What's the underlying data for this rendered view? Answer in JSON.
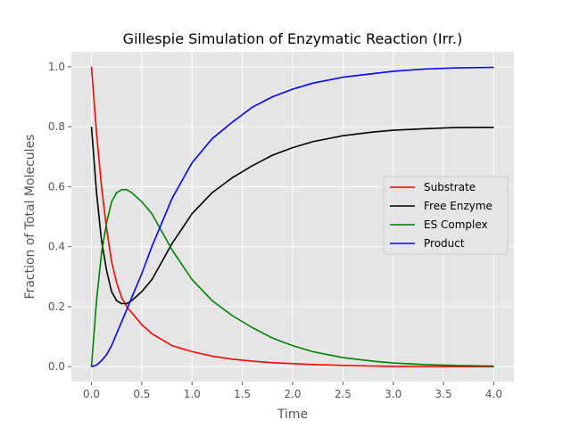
{
  "chart_data": {
    "type": "line",
    "title": "Gillespie Simulation of Enzymatic Reaction (Irr.)",
    "xlabel": "Time",
    "ylabel": "Fraction of Total Molecules",
    "xlim": [
      -0.2,
      4.2
    ],
    "ylim": [
      -0.05,
      1.05
    ],
    "xticks": [
      "0.0",
      "0.5",
      "1.0",
      "1.5",
      "2.0",
      "2.5",
      "3.0",
      "3.5",
      "4.0"
    ],
    "yticks": [
      "0.0",
      "0.2",
      "0.4",
      "0.6",
      "0.8",
      "1.0"
    ],
    "grid": true,
    "legend_position": "right",
    "x": [
      0.0,
      0.05,
      0.1,
      0.15,
      0.2,
      0.25,
      0.3,
      0.35,
      0.4,
      0.5,
      0.6,
      0.7,
      0.8,
      0.9,
      1.0,
      1.2,
      1.4,
      1.6,
      1.8,
      2.0,
      2.2,
      2.5,
      2.8,
      3.0,
      3.3,
      3.6,
      4.0
    ],
    "series": [
      {
        "name": "Substrate",
        "color": "#ff0000",
        "values": [
          1.0,
          0.78,
          0.6,
          0.46,
          0.35,
          0.28,
          0.23,
          0.2,
          0.18,
          0.14,
          0.11,
          0.09,
          0.07,
          0.06,
          0.05,
          0.035,
          0.025,
          0.018,
          0.013,
          0.01,
          0.007,
          0.004,
          0.002,
          0.001,
          0.0005,
          0.0002,
          0.0
        ]
      },
      {
        "name": "Free Enzyme",
        "color": "#000000",
        "values": [
          0.8,
          0.58,
          0.42,
          0.32,
          0.25,
          0.22,
          0.21,
          0.21,
          0.22,
          0.25,
          0.29,
          0.35,
          0.41,
          0.46,
          0.51,
          0.58,
          0.63,
          0.67,
          0.705,
          0.73,
          0.75,
          0.77,
          0.782,
          0.788,
          0.793,
          0.797,
          0.798
        ]
      },
      {
        "name": "ES Complex",
        "color": "#008000",
        "values": [
          0.0,
          0.22,
          0.38,
          0.48,
          0.55,
          0.58,
          0.59,
          0.59,
          0.58,
          0.55,
          0.51,
          0.45,
          0.39,
          0.34,
          0.29,
          0.22,
          0.17,
          0.13,
          0.095,
          0.07,
          0.05,
          0.03,
          0.018,
          0.012,
          0.007,
          0.004,
          0.002
        ]
      },
      {
        "name": "Product",
        "color": "#0000ff",
        "values": [
          0.0,
          0.005,
          0.02,
          0.04,
          0.07,
          0.11,
          0.15,
          0.19,
          0.23,
          0.31,
          0.4,
          0.48,
          0.56,
          0.62,
          0.68,
          0.76,
          0.815,
          0.865,
          0.9,
          0.925,
          0.945,
          0.965,
          0.977,
          0.985,
          0.992,
          0.996,
          0.998
        ]
      }
    ]
  }
}
